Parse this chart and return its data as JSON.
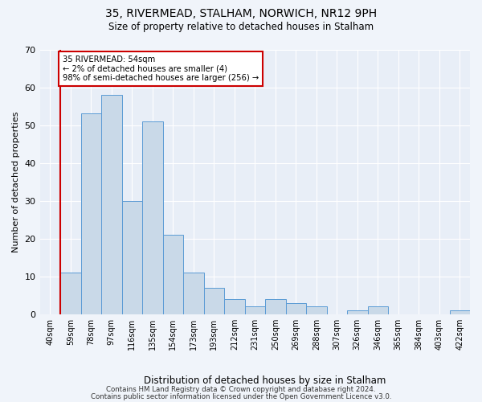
{
  "title": "35, RIVERMEAD, STALHAM, NORWICH, NR12 9PH",
  "subtitle": "Size of property relative to detached houses in Stalham",
  "xlabel": "Distribution of detached houses by size in Stalham",
  "ylabel": "Number of detached properties",
  "categories": [
    "40sqm",
    "59sqm",
    "78sqm",
    "97sqm",
    "116sqm",
    "135sqm",
    "154sqm",
    "173sqm",
    "193sqm",
    "212sqm",
    "231sqm",
    "250sqm",
    "269sqm",
    "288sqm",
    "307sqm",
    "326sqm",
    "346sqm",
    "365sqm",
    "384sqm",
    "403sqm",
    "422sqm"
  ],
  "values": [
    0,
    11,
    53,
    58,
    30,
    51,
    21,
    11,
    7,
    4,
    2,
    4,
    3,
    2,
    0,
    1,
    2,
    0,
    0,
    0,
    1
  ],
  "bar_color": "#c9d9e8",
  "bar_edge_color": "#5b9bd5",
  "highlight_line_color": "#cc0000",
  "annotation_text": "35 RIVERMEAD: 54sqm\n← 2% of detached houses are smaller (4)\n98% of semi-detached houses are larger (256) →",
  "annotation_box_color": "#ffffff",
  "annotation_box_edge": "#cc0000",
  "ylim": [
    0,
    70
  ],
  "yticks": [
    0,
    10,
    20,
    30,
    40,
    50,
    60,
    70
  ],
  "footer1": "Contains HM Land Registry data © Crown copyright and database right 2024.",
  "footer2": "Contains public sector information licensed under the Open Government Licence v3.0.",
  "fig_bg": "#f0f4fa",
  "plot_bg": "#e8eef7"
}
